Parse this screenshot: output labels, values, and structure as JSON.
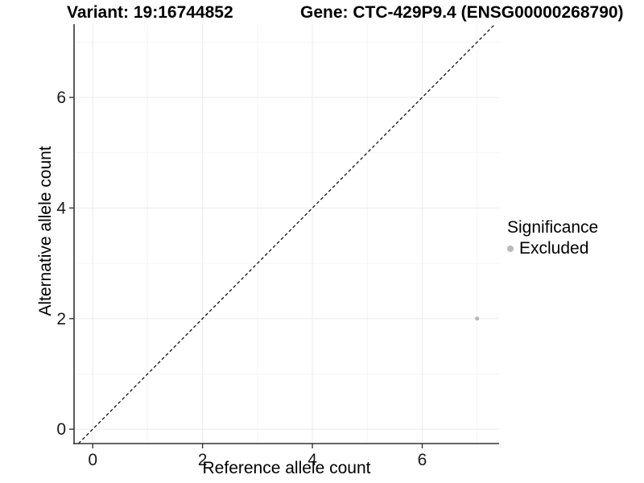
{
  "titles": {
    "variant": "Variant: 19:16744852",
    "gene": "Gene: CTC-429P9.4 (ENSG00000268790)"
  },
  "axes": {
    "x_label": "Reference allele count",
    "y_label": "Alternative allele count"
  },
  "legend": {
    "title": "Significance",
    "items": [
      {
        "label": "Excluded",
        "color": "#b9b9b9"
      }
    ]
  },
  "colors": {
    "background": "#ffffff",
    "axis_line": "#333333",
    "tick_text": "#1a1a1a",
    "grid_major": "#ebebeb",
    "grid_minor": "#f5f5f5",
    "point": "#b5b5b5",
    "reference_line": "#000000"
  },
  "chart_data": {
    "type": "scatter",
    "title_left": "Variant: 19:16744852",
    "title_right": "Gene: CTC-429P9.4 (ENSG00000268790)",
    "xlabel": "Reference allele count",
    "ylabel": "Alternative allele count",
    "xlim": [
      -0.34,
      7.4
    ],
    "ylim": [
      -0.26,
      7.325
    ],
    "x_ticks": [
      0,
      2,
      4,
      6
    ],
    "y_ticks": [
      0,
      2,
      4,
      6
    ],
    "x_minor_ticks": [
      1,
      3,
      5,
      7
    ],
    "y_minor_ticks": [
      1,
      3,
      5,
      7
    ],
    "grid": true,
    "legend_position": "right",
    "series": [
      {
        "name": "Excluded",
        "color": "#b5b5b5",
        "points": [
          [
            7,
            2
          ]
        ],
        "point_radius": 2.5
      }
    ],
    "reference_line": {
      "kind": "identity",
      "slope": 1,
      "intercept": 0,
      "style": "dashed",
      "color": "#000000"
    }
  }
}
